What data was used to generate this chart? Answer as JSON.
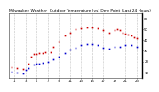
{
  "title": "Milwaukee Weather  Outdoor Temperature (vs) Dew Point (Last 24 Hours)",
  "temp_color": "#cc0000",
  "dew_color": "#0000cc",
  "background": "#ffffff",
  "plot_bg": "#ffffff",
  "grid_color": "#888888",
  "ylim": [
    5,
    65
  ],
  "ytick_vals": [
    10,
    20,
    30,
    40,
    50,
    60
  ],
  "ytick_labels": [
    "10",
    "20",
    "30",
    "40",
    "50",
    "60"
  ],
  "xlim": [
    0,
    24
  ],
  "xtick_vals": [
    1,
    3,
    5,
    7,
    9,
    11,
    13,
    15,
    17,
    19,
    21,
    23
  ],
  "temp_x": [
    0.5,
    1.5,
    2.5,
    3.5,
    4.0,
    4.5,
    5.0,
    5.5,
    6.0,
    6.5,
    7.5,
    8.0,
    9.0,
    10.0,
    11.0,
    12.0,
    13.0,
    14.0,
    15.0,
    16.0,
    17.0,
    18.0,
    19.0,
    19.5,
    20.0,
    20.5,
    21.0,
    21.5,
    22.0,
    22.5,
    23.0
  ],
  "temp_y": [
    15,
    14,
    13,
    18,
    25,
    27,
    27,
    28,
    28,
    29,
    29,
    34,
    39,
    44,
    47,
    50,
    51,
    52,
    52,
    51,
    49,
    47,
    49,
    50,
    49,
    47,
    46,
    45,
    44,
    43,
    42
  ],
  "dew_x": [
    0.5,
    1.5,
    2.5,
    3.0,
    3.5,
    4.5,
    5.0,
    5.5,
    6.0,
    7.0,
    8.0,
    9.0,
    10.0,
    11.0,
    12.0,
    13.0,
    14.0,
    15.0,
    16.0,
    17.0,
    18.0,
    19.0,
    20.0,
    21.0,
    22.0,
    23.0
  ],
  "dew_y": [
    11,
    10,
    9,
    12,
    14,
    17,
    18,
    18,
    19,
    20,
    22,
    25,
    28,
    31,
    33,
    35,
    36,
    36,
    35,
    33,
    32,
    34,
    34,
    35,
    35,
    34
  ],
  "marker_size": 1.2,
  "title_fontsize": 3.2,
  "tick_fontsize": 2.8,
  "linewidth": 0.0
}
